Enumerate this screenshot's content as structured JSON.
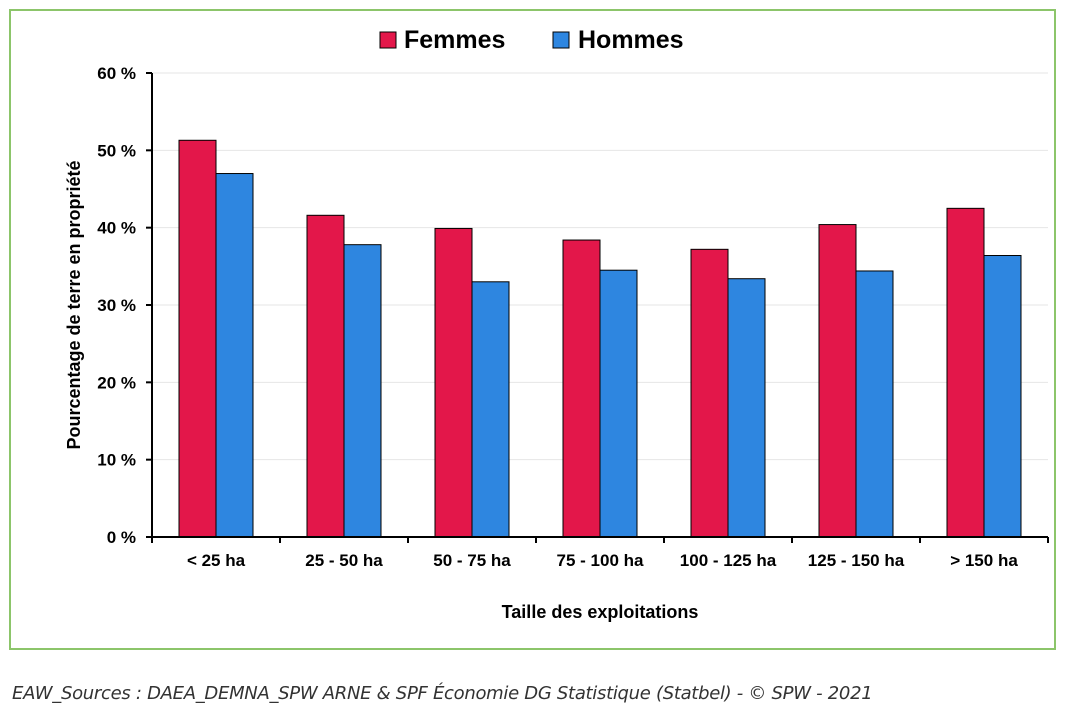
{
  "chart_data": {
    "type": "bar",
    "categories": [
      "< 25 ha",
      "25 - 50 ha",
      "50 - 75 ha",
      "75 - 100 ha",
      "100 - 125 ha",
      "125 - 150 ha",
      "> 150 ha"
    ],
    "series": [
      {
        "name": "Femmes",
        "color": "#e3174a",
        "values": [
          51.3,
          41.6,
          39.9,
          38.4,
          37.2,
          40.4,
          42.5
        ]
      },
      {
        "name": "Hommes",
        "color": "#2e86e0",
        "values": [
          47.0,
          37.8,
          33.0,
          34.5,
          33.4,
          34.4,
          36.4
        ]
      }
    ],
    "xlabel": "Taille des exploitations",
    "ylabel": "Pourcentage de terre en propriété",
    "ylim": [
      0,
      60
    ],
    "yticks": [
      0,
      10,
      20,
      30,
      40,
      50,
      60
    ],
    "ytick_labels": [
      "0 %",
      "10 %",
      "20 %",
      "30 %",
      "40 %",
      "50 %",
      "60 %"
    ],
    "grid": true,
    "legend_position": "top-center"
  },
  "source": "EAW_Sources : DAEA_DEMNA_SPW ARNE & SPF Économie DG Statistique (Statbel) - © SPW - 2021",
  "colors": {
    "frame": "#8cc56a",
    "grid": "#e6e6e6",
    "axis": "#000000"
  }
}
